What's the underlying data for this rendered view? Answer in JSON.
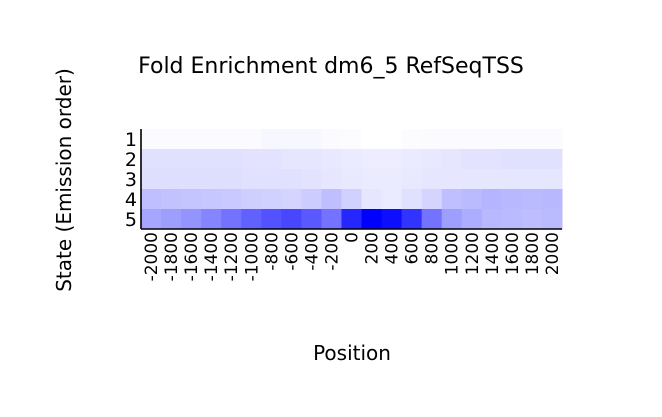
{
  "chart_data": {
    "type": "heatmap",
    "title": "Fold Enrichment dm6_5 RefSeqTSS",
    "xlabel": "Position",
    "ylabel": "State (Emission order)",
    "x": [
      "-2000",
      "-1800",
      "-1600",
      "-1400",
      "-1200",
      "-1000",
      "-800",
      "-600",
      "-400",
      "-200",
      "0",
      "200",
      "400",
      "600",
      "800",
      "1000",
      "1200",
      "1400",
      "1600",
      "1800",
      "2000"
    ],
    "y": [
      "1",
      "2",
      "3",
      "4",
      "5"
    ],
    "color_scale": {
      "low": "#ffffff",
      "high": "#0000ff"
    },
    "values": [
      [
        0.02,
        0.02,
        0.02,
        0.02,
        0.02,
        0.02,
        0.03,
        0.03,
        0.03,
        0.02,
        0.01,
        0.0,
        0.0,
        0.01,
        0.02,
        0.02,
        0.02,
        0.02,
        0.02,
        0.02,
        0.02
      ],
      [
        0.12,
        0.12,
        0.12,
        0.12,
        0.12,
        0.11,
        0.11,
        0.1,
        0.1,
        0.09,
        0.08,
        0.07,
        0.07,
        0.08,
        0.09,
        0.1,
        0.11,
        0.11,
        0.12,
        0.12,
        0.12
      ],
      [
        0.13,
        0.13,
        0.13,
        0.13,
        0.13,
        0.12,
        0.12,
        0.12,
        0.11,
        0.1,
        0.09,
        0.08,
        0.08,
        0.09,
        0.1,
        0.1,
        0.1,
        0.1,
        0.1,
        0.1,
        0.1
      ],
      [
        0.25,
        0.24,
        0.23,
        0.22,
        0.21,
        0.19,
        0.18,
        0.17,
        0.2,
        0.25,
        0.18,
        0.1,
        0.08,
        0.12,
        0.17,
        0.25,
        0.27,
        0.29,
        0.28,
        0.27,
        0.28
      ],
      [
        0.35,
        0.38,
        0.42,
        0.48,
        0.55,
        0.62,
        0.68,
        0.72,
        0.65,
        0.55,
        0.85,
        1.0,
        0.95,
        0.8,
        0.55,
        0.38,
        0.32,
        0.28,
        0.27,
        0.26,
        0.27
      ]
    ]
  }
}
